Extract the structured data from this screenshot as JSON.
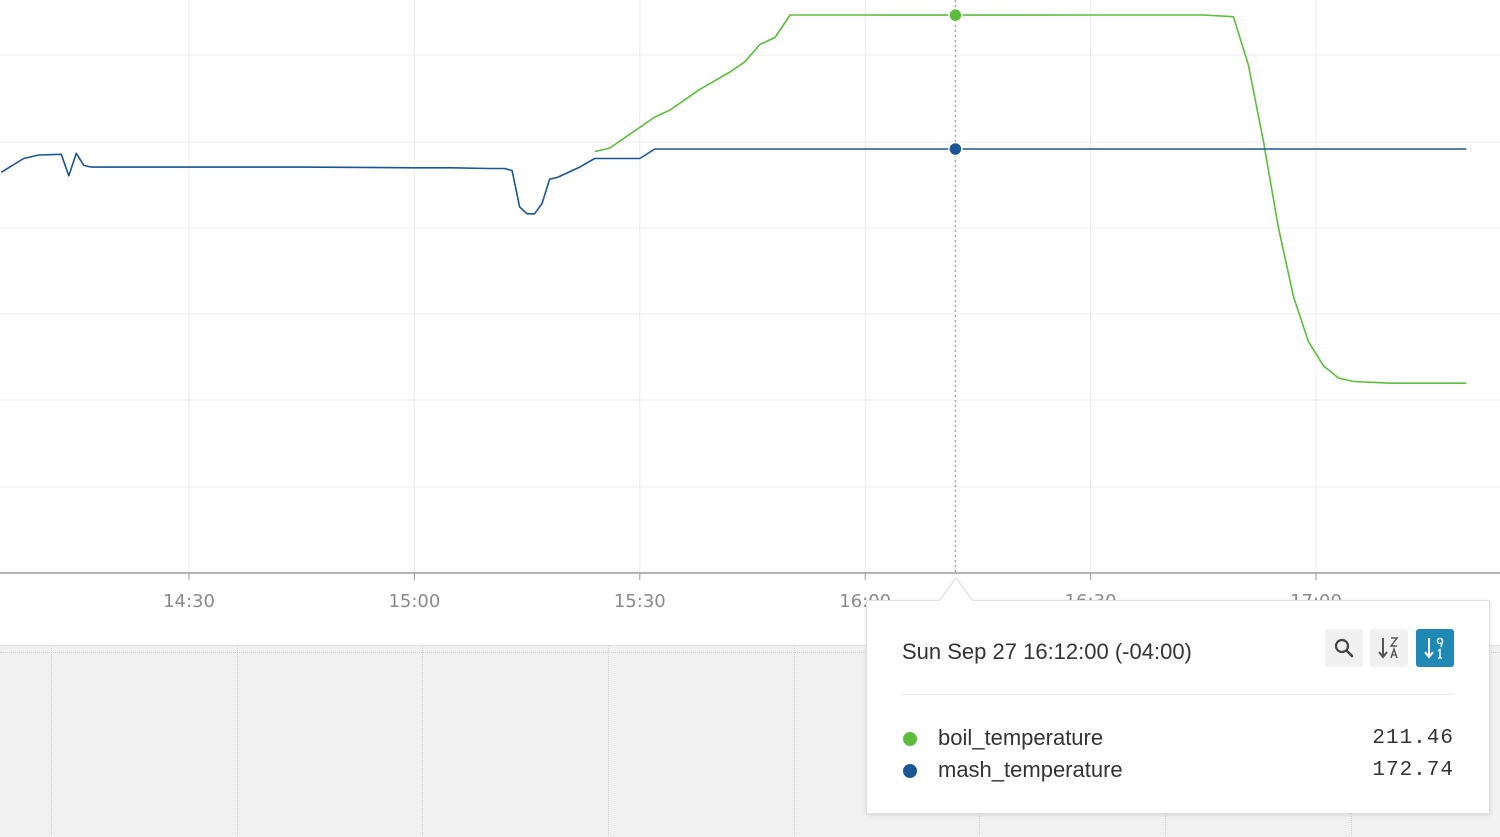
{
  "chart_data": {
    "type": "line",
    "x_ticks": [
      "14:30",
      "15:00",
      "15:30",
      "16:00",
      "16:30",
      "17:00"
    ],
    "series": [
      {
        "name": "boil_temperature",
        "color": "#5cbd3c",
        "points": [
          [
            "15:24",
            172.0
          ],
          [
            "15:26",
            173.0
          ],
          [
            "15:28",
            176.0
          ],
          [
            "15:30",
            179.0
          ],
          [
            "15:32",
            182.0
          ],
          [
            "15:34",
            184.0
          ],
          [
            "15:36",
            187.0
          ],
          [
            "15:38",
            190.0
          ],
          [
            "15:40",
            192.5
          ],
          [
            "15:42",
            195.0
          ],
          [
            "15:44",
            198.0
          ],
          [
            "15:46",
            203.0
          ],
          [
            "15:48",
            205.0
          ],
          [
            "15:50",
            211.5
          ],
          [
            "16:00",
            211.5
          ],
          [
            "16:12",
            211.46
          ],
          [
            "16:30",
            211.5
          ],
          [
            "16:45",
            211.5
          ],
          [
            "16:49",
            211.0
          ],
          [
            "16:51",
            197.0
          ],
          [
            "16:53",
            175.0
          ],
          [
            "16:55",
            150.0
          ],
          [
            "16:57",
            130.0
          ],
          [
            "16:59",
            117.0
          ],
          [
            "17:01",
            110.0
          ],
          [
            "17:03",
            106.5
          ],
          [
            "17:05",
            105.5
          ],
          [
            "17:10",
            105.0
          ],
          [
            "17:15",
            105.0
          ],
          [
            "17:20",
            105.0
          ]
        ]
      },
      {
        "name": "mash_temperature",
        "color": "#1b5595",
        "points": [
          [
            "14:05",
            166.0
          ],
          [
            "14:08",
            170.0
          ],
          [
            "14:10",
            171.0
          ],
          [
            "14:13",
            171.2
          ],
          [
            "14:14",
            165.0
          ],
          [
            "14:15",
            171.5
          ],
          [
            "14:16",
            168.0
          ],
          [
            "14:17",
            167.5
          ],
          [
            "14:30",
            167.5
          ],
          [
            "14:45",
            167.5
          ],
          [
            "15:00",
            167.3
          ],
          [
            "15:05",
            167.3
          ],
          [
            "15:10",
            167.1
          ],
          [
            "15:12",
            167.1
          ],
          [
            "15:13",
            166.5
          ],
          [
            "15:14",
            156.0
          ],
          [
            "15:15",
            154.0
          ],
          [
            "15:16",
            154.0
          ],
          [
            "15:17",
            157.0
          ],
          [
            "15:18",
            164.0
          ],
          [
            "15:19",
            164.5
          ],
          [
            "15:22",
            167.5
          ],
          [
            "15:24",
            170.0
          ],
          [
            "15:30",
            170.0
          ],
          [
            "15:32",
            172.74
          ],
          [
            "16:12",
            172.74
          ],
          [
            "17:20",
            172.74
          ]
        ]
      }
    ],
    "hover_time": "16:12"
  },
  "tooltip": {
    "time": "Sun Sep 27 16:12:00 (-04:00)",
    "rows": [
      {
        "name": "boil_temperature",
        "value": "211.46",
        "color": "#5cbd3c"
      },
      {
        "name": "mash_temperature",
        "value": "172.74",
        "color": "#1b5595"
      }
    ],
    "buttons": [
      "search-icon",
      "sort-alpha-icon",
      "sort-numeric-icon"
    ]
  }
}
